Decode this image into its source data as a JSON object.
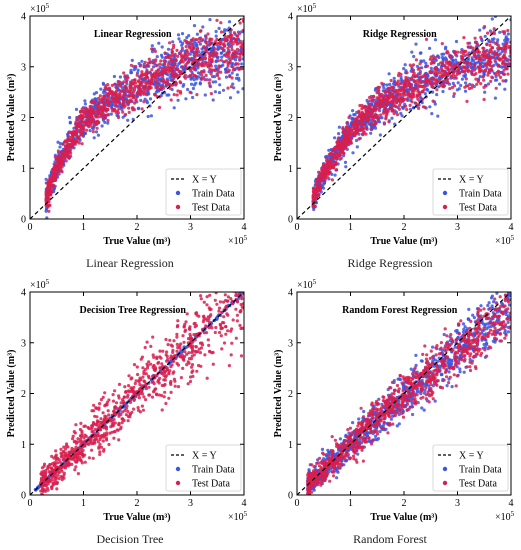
{
  "chart_data": [
    {
      "type": "scatter",
      "title": "Linear Regression",
      "caption": "Linear Regression",
      "xlabel": "True Value (m³)",
      "ylabel": "Predicted Value (m³)",
      "xlim": [
        0,
        4
      ],
      "ylim": [
        0,
        4
      ],
      "ticks": [
        0,
        1,
        2,
        3,
        4
      ],
      "scale_label": "×10",
      "scale_exp": "5",
      "legend": [
        "X = Y",
        "Train Data",
        "Test Data"
      ],
      "legend_position": "bottom-right",
      "grid": false,
      "series": [
        {
          "name": "X = Y",
          "style": "dashed",
          "color": "#000000",
          "x": [
            0,
            4
          ],
          "y": [
            0,
            4
          ]
        },
        {
          "name": "Train Data",
          "color": "#3a55e0",
          "x": [
            0.3,
            0.5,
            0.8,
            1.0,
            1.5,
            2.0,
            2.5,
            3.0,
            3.5,
            4.0
          ],
          "y": [
            0.4,
            1.0,
            1.6,
            1.9,
            2.3,
            2.6,
            2.9,
            3.1,
            3.2,
            3.3
          ],
          "spread": 0.35
        },
        {
          "name": "Test Data",
          "color": "#d81f4f",
          "x": [
            0.3,
            0.5,
            0.8,
            1.0,
            1.5,
            2.0,
            2.5,
            3.0,
            3.5,
            4.0
          ],
          "y": [
            0.4,
            1.0,
            1.6,
            1.9,
            2.3,
            2.6,
            2.9,
            3.1,
            3.2,
            3.3
          ],
          "spread": 0.3
        }
      ]
    },
    {
      "type": "scatter",
      "title": "Ridge Regression",
      "caption": "Ridge Regression",
      "xlabel": "True Value (m³)",
      "ylabel": "Predicted Value (m³)",
      "xlim": [
        0,
        4
      ],
      "ylim": [
        0,
        4
      ],
      "ticks": [
        0,
        1,
        2,
        3,
        4
      ],
      "scale_label": "×10",
      "scale_exp": "5",
      "legend": [
        "X = Y",
        "Train Data",
        "Test Data"
      ],
      "legend_position": "bottom-right",
      "grid": false,
      "series": [
        {
          "name": "X = Y",
          "style": "dashed",
          "color": "#000000",
          "x": [
            0,
            4
          ],
          "y": [
            0,
            4
          ]
        },
        {
          "name": "Train Data",
          "color": "#3a55e0",
          "x": [
            0.3,
            0.5,
            0.8,
            1.0,
            1.5,
            2.0,
            2.5,
            3.0,
            3.5,
            4.0
          ],
          "y": [
            0.4,
            0.9,
            1.4,
            1.7,
            2.2,
            2.5,
            2.8,
            3.0,
            3.15,
            3.25
          ],
          "spread": 0.32
        },
        {
          "name": "Test Data",
          "color": "#d81f4f",
          "x": [
            0.3,
            0.5,
            0.8,
            1.0,
            1.5,
            2.0,
            2.5,
            3.0,
            3.5,
            4.0
          ],
          "y": [
            0.4,
            0.9,
            1.4,
            1.7,
            2.2,
            2.5,
            2.8,
            3.0,
            3.15,
            3.25
          ],
          "spread": 0.28
        }
      ]
    },
    {
      "type": "scatter",
      "title": "Decision Tree Regression",
      "caption": "Decision Tree",
      "xlabel": "True Value (m³)",
      "ylabel": "Predicted Value (m³)",
      "xlim": [
        0,
        4
      ],
      "ylim": [
        0,
        4
      ],
      "ticks": [
        0,
        1,
        2,
        3,
        4
      ],
      "scale_label": "×10",
      "scale_exp": "5",
      "legend": [
        "X = Y",
        "Train Data",
        "Test Data"
      ],
      "legend_position": "bottom-right",
      "grid": false,
      "series": [
        {
          "name": "X = Y",
          "style": "dashed",
          "color": "#000000",
          "x": [
            0,
            4
          ],
          "y": [
            0,
            4
          ]
        },
        {
          "name": "Train Data",
          "color": "#3a55e0",
          "x": [
            0.1,
            1.0,
            2.0,
            3.0,
            4.0
          ],
          "y": [
            0.1,
            1.0,
            2.0,
            3.0,
            4.0
          ],
          "spread": 0.02
        },
        {
          "name": "Test Data",
          "color": "#d81f4f",
          "x": [
            0.2,
            1.0,
            2.0,
            3.0,
            4.0
          ],
          "y": [
            0.2,
            1.0,
            2.0,
            3.0,
            3.8
          ],
          "spread": 0.45
        }
      ]
    },
    {
      "type": "scatter",
      "title": "Random Forest Regression",
      "caption": "Random Forest",
      "xlabel": "True Value (m³)",
      "ylabel": "Predicted Value (m³)",
      "xlim": [
        0,
        4
      ],
      "ylim": [
        0,
        4
      ],
      "ticks": [
        0,
        1,
        2,
        3,
        4
      ],
      "scale_label": "×10",
      "scale_exp": "5",
      "legend": [
        "X = Y",
        "Train Data",
        "Test Data"
      ],
      "legend_position": "bottom-right",
      "grid": false,
      "series": [
        {
          "name": "X = Y",
          "style": "dashed",
          "color": "#000000",
          "x": [
            0,
            4
          ],
          "y": [
            0,
            4
          ]
        },
        {
          "name": "Train Data",
          "color": "#3a55e0",
          "x": [
            0.2,
            1.0,
            2.0,
            3.0,
            4.0
          ],
          "y": [
            0.2,
            1.0,
            1.95,
            2.85,
            3.7
          ],
          "spread": 0.3
        },
        {
          "name": "Test Data",
          "color": "#d81f4f",
          "x": [
            0.2,
            1.0,
            2.0,
            3.0,
            4.0
          ],
          "y": [
            0.2,
            1.0,
            1.95,
            2.85,
            3.7
          ],
          "spread": 0.3
        }
      ]
    }
  ]
}
